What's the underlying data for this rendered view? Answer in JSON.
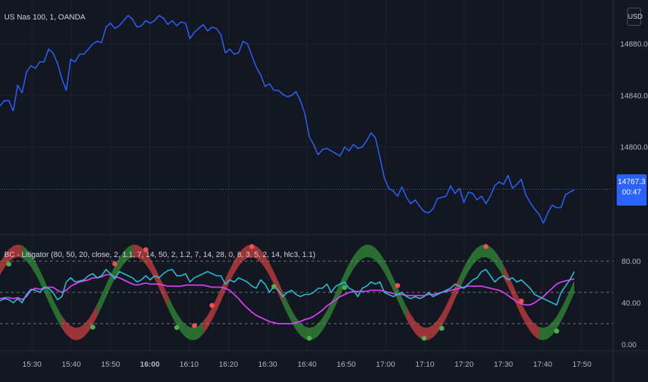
{
  "main_title": "US Nas 100, 1, OANDA",
  "indicator_title": "BC - Litigator (80, 50, 20, close, 2, 1.1, 7, 14, 50, 2, 1.2, 7, 14, 28, 0, 8, 3, 5, 2, 14, hlc3, 1.1)",
  "currency_badge": "USD",
  "last_price_label": "14767.3",
  "countdown_label": "00:47",
  "colors": {
    "background": "#131722",
    "grid": "#1e222d",
    "price_line": "#2962ff",
    "cyan_line": "#26c6da",
    "magenta_line": "#e040fb",
    "green_fill": "#2e7d32",
    "red_fill": "#b33a3a",
    "dots_green": "#4caf50",
    "dots_red": "#ef5350"
  },
  "chart_data": [
    {
      "type": "line",
      "series": [
        {
          "values": [
            14832,
            14836,
            14836,
            14828,
            14848,
            14842,
            14858,
            14863,
            14861,
            14866,
            14866,
            14876,
            14873,
            14865,
            14853,
            14844,
            14868,
            14866,
            14872,
            14872,
            14876,
            14880,
            14882,
            14881,
            14893,
            14896,
            14892,
            14894,
            14898,
            14902,
            14899,
            14893,
            14894,
            14898,
            14896,
            14898,
            14902,
            14900,
            14895,
            14898,
            14894,
            14897,
            14896,
            14884,
            14889,
            14892,
            14895,
            14890,
            14893,
            14892,
            14887,
            14873,
            14876,
            14872,
            14873,
            14882,
            14880,
            14871,
            14862,
            14856,
            14847,
            14849,
            14844,
            14844,
            14841,
            14839,
            14840,
            14843,
            14836,
            14826,
            14808,
            14802,
            14794,
            14798,
            14799,
            14797,
            14795,
            14793,
            14800,
            14797,
            14802,
            14799,
            14800,
            14805,
            14811,
            14807,
            14792,
            14776,
            14768,
            14766,
            14762,
            14769,
            14761,
            14756,
            14759,
            14754,
            14750,
            14749,
            14752,
            14760,
            14761,
            14762,
            14770,
            14764,
            14768,
            14757,
            14765,
            14764,
            14759,
            14762,
            14756,
            14762,
            14770,
            14773,
            14771,
            14778,
            14768,
            14771,
            14775,
            14763,
            14757,
            14752,
            14748,
            14741,
            14749,
            14755,
            14753,
            14753,
            14763,
            14765,
            14767
          ]
        }
      ],
      "y_ticks": [
        "14880.0",
        "14840.0",
        "14800.0"
      ],
      "ylim": [
        14732,
        14914
      ],
      "last_value": 14767.3,
      "grid": true
    },
    {
      "type": "line",
      "series": [
        {
          "values": [
            42,
            44,
            43,
            40,
            44,
            40,
            48,
            53,
            52,
            50,
            55,
            54,
            50,
            43,
            46,
            60,
            64,
            60,
            61,
            62,
            66,
            68,
            64,
            66,
            72,
            68,
            63,
            70,
            68,
            66,
            64,
            60,
            62,
            66,
            62,
            66,
            64,
            68,
            71,
            72,
            66,
            66,
            68,
            60,
            64,
            66,
            68,
            70,
            68,
            66,
            66,
            58,
            62,
            60,
            64,
            62,
            60,
            56,
            54,
            62,
            58,
            50,
            56,
            52,
            46,
            50,
            52,
            48,
            46,
            48,
            48,
            50,
            54,
            54,
            58,
            50,
            56,
            58,
            60,
            54,
            52,
            46,
            54,
            56,
            60,
            58,
            60,
            50,
            48,
            46,
            48,
            50,
            46,
            44,
            46,
            44,
            46,
            50,
            46,
            48,
            50,
            52,
            54,
            58,
            56,
            54,
            58,
            62,
            64,
            70,
            72,
            66,
            60,
            64,
            66,
            62,
            64,
            60,
            62,
            58,
            54,
            48,
            46,
            44,
            42,
            40,
            38,
            50,
            56,
            62,
            70
          ]
        },
        {
          "values": [
            44,
            45,
            45,
            44,
            45,
            43,
            46,
            52,
            54,
            53,
            54,
            55,
            55,
            52,
            50,
            52,
            56,
            58,
            60,
            61,
            62,
            64,
            64,
            65,
            67,
            67,
            65,
            64,
            62,
            60,
            58,
            57,
            58,
            59,
            58,
            58,
            58,
            57,
            56,
            56,
            56,
            56,
            57,
            57,
            57,
            57,
            57,
            56,
            55,
            55,
            55,
            54,
            52,
            48,
            44,
            39,
            35,
            31,
            28,
            26,
            24,
            22,
            21,
            20,
            20,
            20,
            20,
            21,
            22,
            24,
            25,
            27,
            30,
            33,
            37,
            40,
            43,
            46,
            48,
            50,
            51,
            51,
            51,
            51,
            52,
            52,
            52,
            51,
            50,
            49,
            48,
            48,
            47,
            47,
            47,
            47,
            47,
            48,
            48,
            49,
            50,
            51,
            52,
            53,
            54,
            55,
            56,
            56,
            56,
            56,
            55,
            54,
            53,
            52,
            50,
            47,
            44,
            41,
            39,
            38,
            38,
            40,
            43,
            46,
            50,
            54,
            58,
            60,
            61,
            62,
            63
          ]
        }
      ],
      "y_ticks": [
        "80.00",
        "40.00",
        "0.00"
      ],
      "ylim": [
        -6,
        104
      ],
      "reference_lines": [
        80,
        50,
        20
      ],
      "grid": true
    }
  ],
  "time_axis": {
    "labels": [
      "15:30",
      "15:40",
      "15:50",
      "16:00",
      "16:10",
      "16:20",
      "16:30",
      "16:40",
      "16:50",
      "17:00",
      "17:10",
      "17:20",
      "17:30",
      "17:40",
      "17:50"
    ],
    "bold_label": "16:00"
  }
}
